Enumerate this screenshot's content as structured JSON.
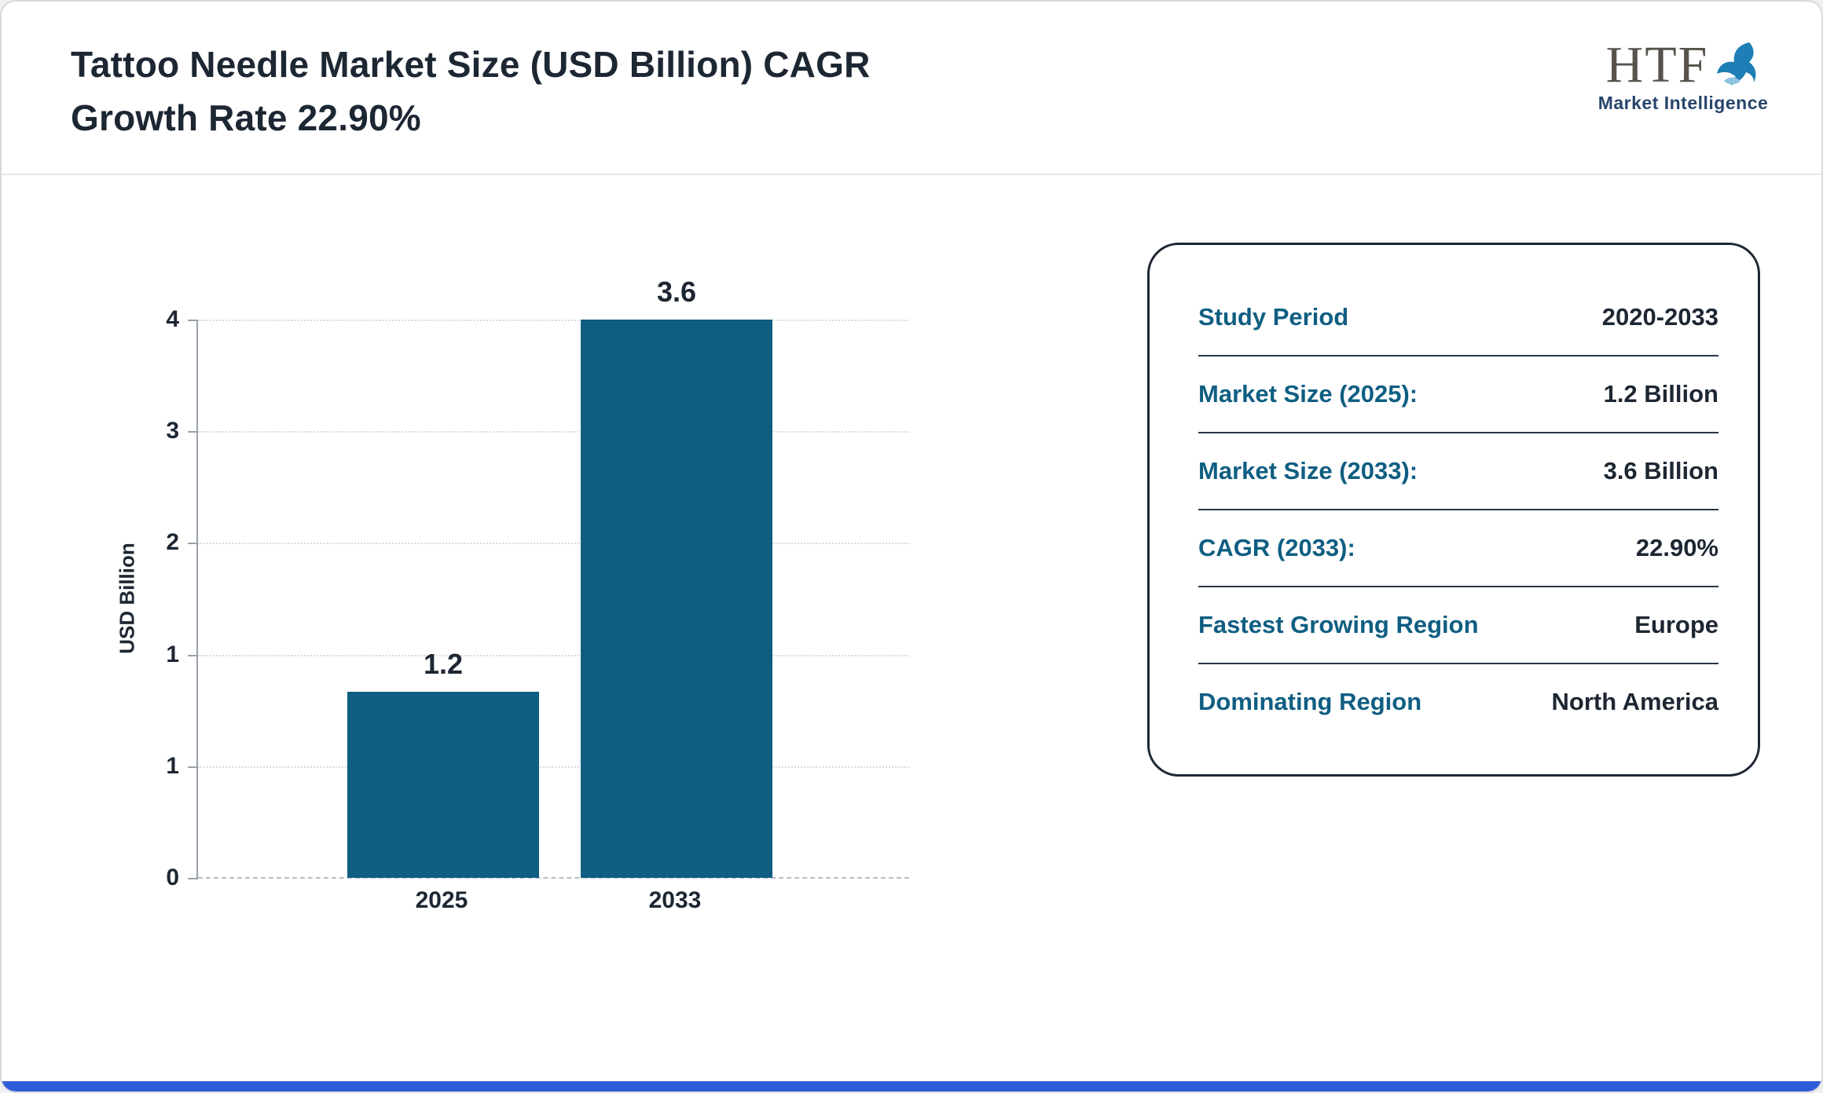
{
  "header": {
    "title_line1": "Tattoo Needle Market Size (USD Billion) CAGR",
    "title_line2": "Growth Rate 22.90%",
    "logo": {
      "text": "HTF",
      "subtext": "Market Intelligence",
      "icon": "dolphin-icon"
    }
  },
  "chart_data": {
    "type": "bar",
    "title": "Tattoo Needle Market Size (USD Billion)",
    "categories": [
      "2025",
      "2033"
    ],
    "values": [
      1.2,
      3.6
    ],
    "bar_value_labels": [
      "1.2",
      "3.6"
    ],
    "xlabel": "",
    "ylabel": "USD Billion",
    "ylim": [
      0,
      3.6
    ],
    "yticks_top_to_bottom": [
      "4",
      "3",
      "2",
      "1",
      "1",
      "0"
    ],
    "grid": true,
    "legend": false,
    "bar_color": "#0f5e82"
  },
  "summary_card": {
    "rows": [
      {
        "label": "Study Period",
        "value": "2020-2033"
      },
      {
        "label": "Market Size (2025):",
        "value": "1.2 Billion"
      },
      {
        "label": "Market Size (2033):",
        "value": "3.6 Billion"
      },
      {
        "label": "CAGR (2033):",
        "value": "22.90%"
      },
      {
        "label": "Fastest Growing Region",
        "value": "Europe"
      },
      {
        "label": "Dominating Region",
        "value": "North America"
      }
    ]
  },
  "colors": {
    "accent": "#0f5e82",
    "text_dark": "#1d2733",
    "grid": "#d8dadc",
    "axis": "#9aa2ab",
    "baseline": "#b6bcc3",
    "separator": "#2a3645",
    "footer_blue": "#2e5cd8",
    "page_border": "#d8dade",
    "divider": "#e5e6e8",
    "logo_gray": "#57524b",
    "logo_navy": "#27456b",
    "dolphin_dark": "#1d7fb5",
    "dolphin_light": "#8fc3e0"
  }
}
